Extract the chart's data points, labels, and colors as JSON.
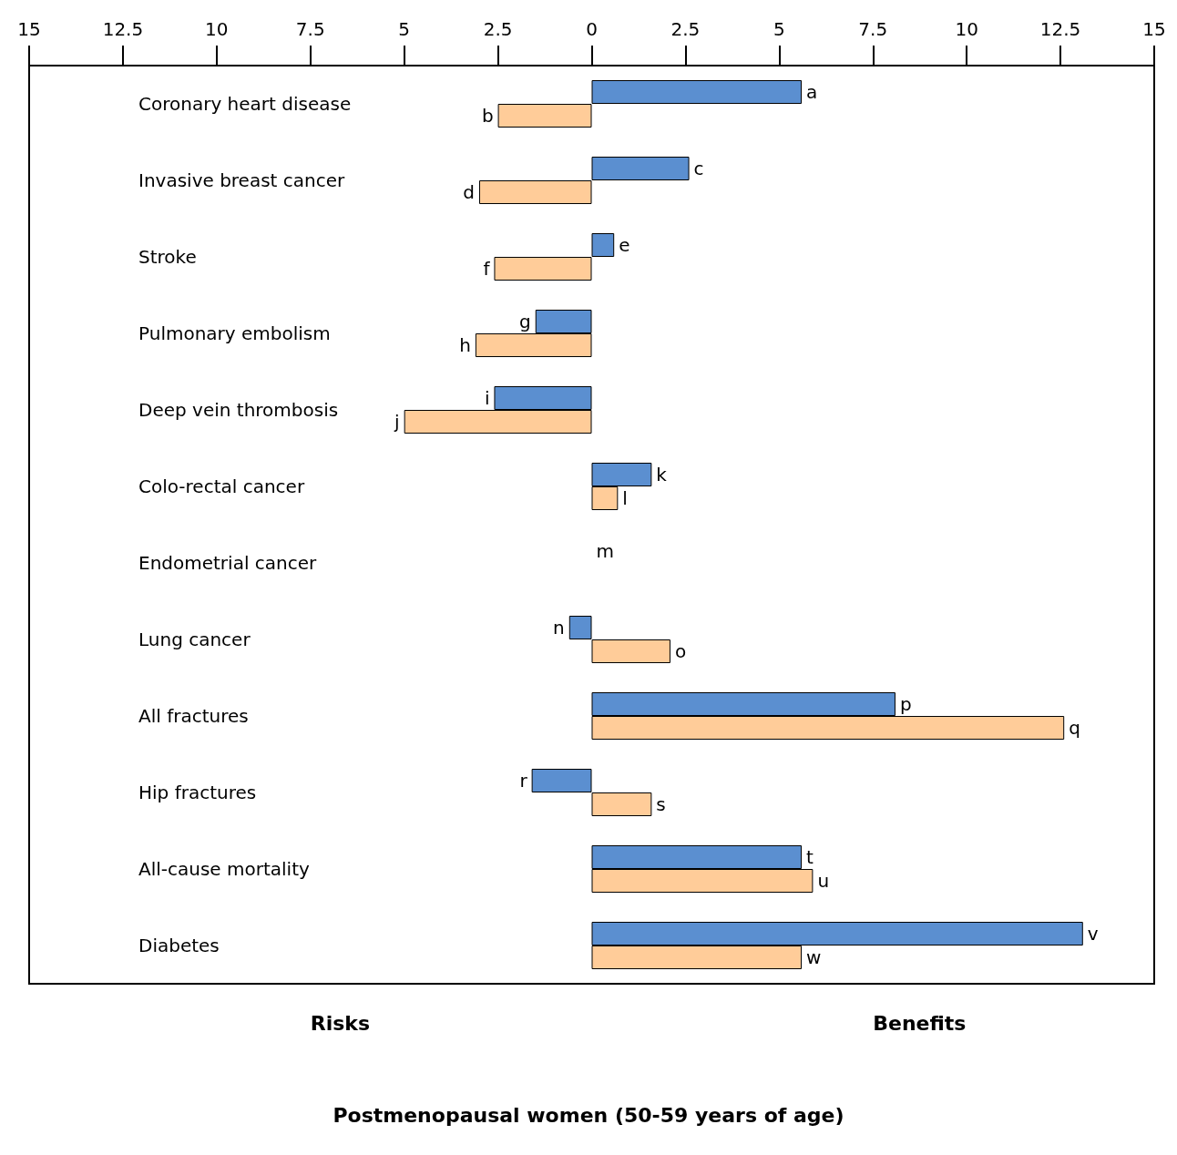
{
  "chart_data": {
    "type": "bar",
    "orientation": "horizontal",
    "title": "Postmenopausal women (50-59 years of age)",
    "categories": [
      "Coronary heart disease",
      "Invasive breast cancer",
      "Stroke",
      "Pulmonary embolism",
      "Deep vein thrombosis",
      "Colo-rectal cancer",
      "Endometrial cancer",
      "Lung cancer",
      "All fractures",
      "Hip fractures",
      "All-cause mortality",
      "Diabetes"
    ],
    "series": [
      {
        "color": "#5b8fd0",
        "values": [
          5.6,
          2.6,
          0.6,
          -1.5,
          -2.6,
          1.6,
          0,
          -0.6,
          8.1,
          -1.6,
          5.6,
          13.1
        ],
        "value_labels": [
          "a",
          "c",
          "e",
          "g",
          "i",
          "k",
          "m",
          "n",
          "p",
          "r",
          "t",
          "v"
        ]
      },
      {
        "color": "#ffcc99",
        "values": [
          -2.5,
          -3.0,
          -2.6,
          -3.1,
          -5.0,
          0.7,
          0,
          2.1,
          12.6,
          1.6,
          5.9,
          5.6
        ],
        "value_labels": [
          "b",
          "d",
          "f",
          "h",
          "j",
          "l",
          null,
          "o",
          "q",
          "s",
          "u",
          "w"
        ]
      }
    ],
    "xlim": [
      -15,
      15
    ],
    "xticks": [
      {
        "value": -15,
        "label": "15"
      },
      {
        "value": -12.5,
        "label": "12.5"
      },
      {
        "value": -10,
        "label": "10"
      },
      {
        "value": -7.5,
        "label": "7.5"
      },
      {
        "value": -5,
        "label": "5"
      },
      {
        "value": -2.5,
        "label": "2.5"
      },
      0,
      2.5,
      5,
      7.5,
      10,
      12.5,
      15
    ],
    "annotations": [
      "Risks",
      "Benefits"
    ],
    "grid": false
  }
}
